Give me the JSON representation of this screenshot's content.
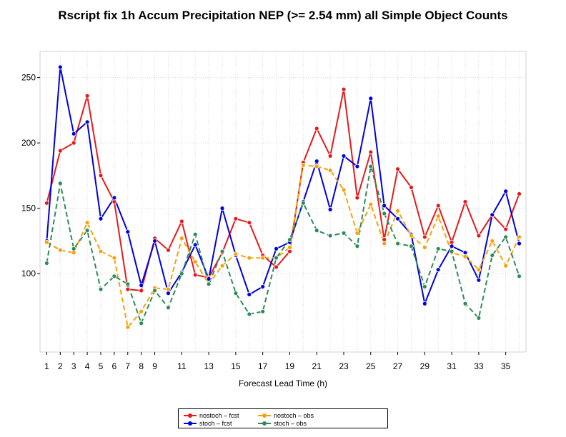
{
  "chart_data": {
    "type": "line",
    "title": "Rscript fix 1h Accum Precipitation NEP (>= 2.54 mm) all Simple Object Counts",
    "xlabel": "Forecast Lead Time (h)",
    "ylabel": "",
    "xlim": [
      0.5,
      36.5
    ],
    "ylim": [
      40,
      270
    ],
    "xticks": [
      1,
      2,
      3,
      4,
      5,
      6,
      7,
      8,
      9,
      11,
      13,
      15,
      17,
      19,
      21,
      23,
      25,
      27,
      29,
      31,
      33,
      35
    ],
    "yticks": [
      100,
      150,
      200,
      250
    ],
    "x": [
      1,
      2,
      3,
      4,
      5,
      6,
      7,
      8,
      9,
      10,
      11,
      12,
      13,
      14,
      15,
      16,
      17,
      18,
      19,
      20,
      21,
      22,
      23,
      24,
      25,
      26,
      27,
      28,
      29,
      30,
      31,
      32,
      33,
      34,
      35,
      36
    ],
    "series": [
      {
        "name": "nostoch – fcst",
        "color": "#e41a1c",
        "values": [
          154,
          194,
          200,
          236,
          175,
          155,
          88,
          87,
          127,
          118,
          140,
          99,
          97,
          116,
          142,
          139,
          114,
          105,
          117,
          185,
          211,
          190,
          241,
          158,
          193,
          126,
          180,
          166,
          128,
          152,
          124,
          155,
          129,
          145,
          134,
          161
        ]
      },
      {
        "name": "stoch – fcst",
        "color": "#0000dd",
        "values": [
          125,
          258,
          207,
          216,
          142,
          158,
          132,
          91,
          125,
          85,
          101,
          122,
          96,
          150,
          114,
          84,
          90,
          119,
          124,
          155,
          186,
          149,
          190,
          182,
          234,
          152,
          142,
          130,
          77,
          103,
          121,
          116,
          95,
          145,
          163,
          123
        ]
      },
      {
        "name": "nostoch – obs",
        "color": "#f5a10b",
        "values": [
          124,
          118,
          116,
          139,
          117,
          112,
          59,
          71,
          89,
          88,
          127,
          109,
          92,
          106,
          115,
          112,
          112,
          112,
          120,
          183,
          182,
          179,
          164,
          131,
          153,
          123,
          148,
          129,
          120,
          144,
          116,
          113,
          103,
          125,
          106,
          128
        ]
      },
      {
        "name": "stoch – obs",
        "color": "#2e8b57",
        "values": [
          108,
          169,
          119,
          133,
          88,
          98,
          92,
          62,
          87,
          74,
          100,
          130,
          92,
          117,
          85,
          69,
          71,
          112,
          126,
          154,
          133,
          129,
          131,
          121,
          182,
          146,
          123,
          121,
          90,
          119,
          117,
          77,
          66,
          114,
          128,
          98
        ]
      }
    ],
    "legend": {
      "position": "bottom",
      "entries": [
        "nostoch – fcst",
        "stoch – fcst",
        "nostoch – obs",
        "stoch – obs"
      ]
    },
    "grid": true
  }
}
